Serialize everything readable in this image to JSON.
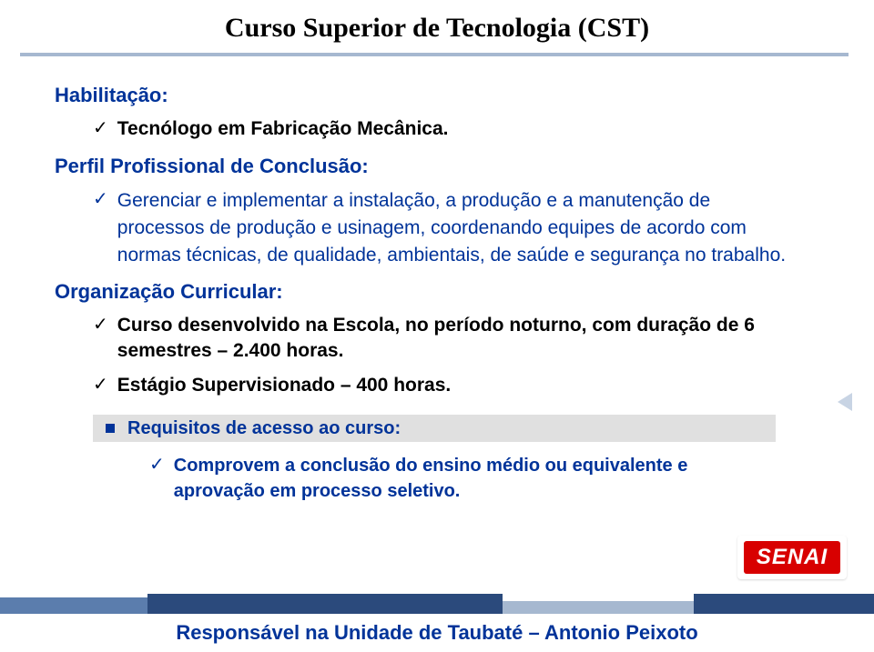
{
  "title": "Curso Superior de Tecnologia (CST)",
  "colors": {
    "accent_blue": "#003399",
    "underline": "#a6b8d0",
    "req_bg": "#e0e0e0",
    "logo_bg": "#d80000",
    "bar_a": "#5b7dad",
    "bar_b": "#2b4a7c",
    "bar_c": "#a6b8d0"
  },
  "habilitacao": {
    "label": "Habilitação:",
    "item": "Tecnólogo em Fabricação Mecânica."
  },
  "perfil": {
    "label": "Perfil Profissional de Conclusão:",
    "body": "Gerenciar e implementar a instalação, a produção e a manutenção de processos de produção e usinagem, coordenando equipes de acordo com normas técnicas, de qualidade, ambientais, de saúde e segurança no trabalho."
  },
  "organizacao": {
    "label": "Organização Curricular:",
    "items": [
      "Curso desenvolvido na Escola, no período noturno, com duração de 6 semestres – 2.400 horas.",
      "Estágio Supervisionado – 400 horas."
    ]
  },
  "requisitos": {
    "label": "Requisitos de acesso ao curso:",
    "body": "Comprovem a conclusão do ensino médio ou equivalente e aprovação em processo seletivo."
  },
  "footer": "Responsável na Unidade de Taubaté – Antonio Peixoto",
  "logo_text": "SENAI",
  "check_glyph": "✓",
  "nav_arrow_name": "prev-arrow-icon"
}
